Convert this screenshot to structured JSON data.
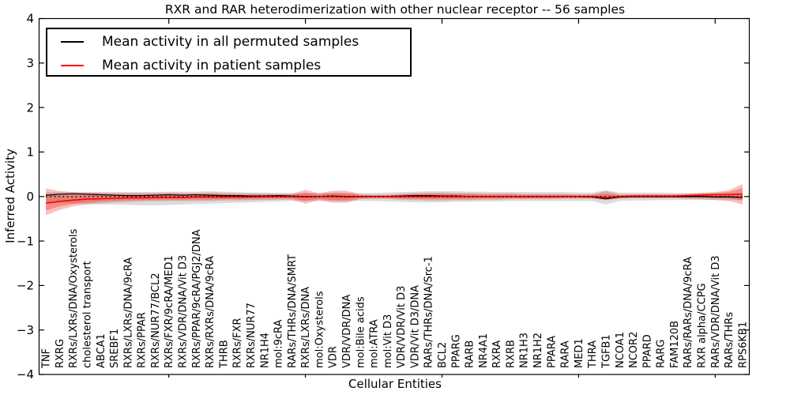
{
  "figure": {
    "title": "RXR and RAR heterodimerization with other nuclear receptor -- 56 samples",
    "xlabel": "Cellular Entities",
    "ylabel": "Inferred Activity",
    "legend": [
      {
        "label": "Mean activity in all permuted samples",
        "color": "#000000"
      },
      {
        "label": "Mean activity in patient samples",
        "color": "#ff0000"
      }
    ]
  },
  "chart_data": {
    "type": "line",
    "title": "RXR and RAR heterodimerization with other nuclear receptor -- 56 samples",
    "xlabel": "Cellular Entities",
    "ylabel": "Inferred Activity",
    "ylim": [
      -4,
      4
    ],
    "yticks": [
      4,
      3,
      2,
      1,
      0,
      -1,
      -2,
      -3,
      -4
    ],
    "x_major_tick_indices": [
      9,
      19,
      29,
      39,
      49
    ],
    "grid": false,
    "legend_position": "upper left",
    "categories": [
      "TNF",
      "RXRG",
      "RXRs/LXRs/DNA/Oxysterols",
      "cholesterol transport",
      "ABCA1",
      "SREBF1",
      "RXRs/LXRs/DNA/9cRA",
      "RXRs/PPAR",
      "RXRs/NUR77/BCL2",
      "RXRs/FXR/9cRA/MED1",
      "RXRs/VDR/DNA/Vit D3",
      "RXRs/PPAR/9cRA/PGJ2/DNA",
      "RXRs/RXRs/DNA/9cRA",
      "THRB",
      "RXRs/FXR",
      "RXRs/NUR77",
      "NR1H4",
      "mol:9cRA",
      "RARs/THRs/DNA/SMRT",
      "RXRs/LXRs/DNA",
      "mol:Oxysterols",
      "VDR",
      "VDR/VDR/DNA",
      "mol:Bile acids",
      "mol:ATRA",
      "mol:Vit D3",
      "VDR/VDR/Vit D3",
      "VDR/Vit D3/DNA",
      "RARs/THRs/DNA/Src-1",
      "BCL2",
      "PPARG",
      "RARB",
      "NR4A1",
      "RXRA",
      "RXRB",
      "NR1H3",
      "NR1H2",
      "PPARA",
      "RARA",
      "MED1",
      "THRA",
      "TGFB1",
      "NCOA1",
      "NCOR2",
      "PPARD",
      "RARG",
      "FAM120B",
      "RARs/RARs/DNA/9cRA",
      "RXR alpha/CCPG",
      "RARs/VDR/DNA/Vit D3",
      "RARs/THRs",
      "RPS6KB1"
    ],
    "series": [
      {
        "name": "Mean activity in all permuted samples",
        "color": "#000000",
        "style": "solid",
        "values": [
          0.03,
          0.05,
          0.06,
          0.05,
          0.04,
          0.03,
          0.02,
          0.02,
          0.03,
          0.04,
          0.03,
          0.04,
          0.03,
          0.02,
          0.02,
          0.01,
          0.01,
          0.02,
          0.01,
          0.0,
          0.0,
          0.01,
          0.0,
          0.0,
          0.0,
          0.0,
          0.01,
          0.02,
          0.02,
          0.01,
          0.01,
          0.0,
          0.0,
          0.0,
          0.0,
          0.0,
          0.0,
          0.0,
          0.0,
          0.0,
          -0.01,
          -0.05,
          -0.01,
          0.0,
          0.0,
          0.0,
          0.0,
          0.0,
          0.0,
          -0.01,
          -0.01,
          -0.02
        ]
      },
      {
        "name": "Mean activity in patient samples",
        "color": "#ff0000",
        "style": "solid",
        "values": [
          -0.15,
          -0.11,
          -0.08,
          -0.06,
          -0.05,
          -0.04,
          -0.03,
          -0.03,
          -0.02,
          -0.02,
          -0.02,
          -0.01,
          -0.01,
          -0.01,
          -0.01,
          -0.01,
          0.0,
          0.0,
          0.0,
          -0.01,
          0.0,
          0.0,
          -0.01,
          0.0,
          0.0,
          0.0,
          0.0,
          0.0,
          0.0,
          0.0,
          0.0,
          0.0,
          0.0,
          0.0,
          0.0,
          0.0,
          0.0,
          0.0,
          0.0,
          0.0,
          0.0,
          -0.02,
          0.0,
          0.01,
          0.01,
          0.01,
          0.01,
          0.02,
          0.03,
          0.04,
          0.04,
          0.05
        ]
      }
    ],
    "bands": [
      {
        "name": "permuted-samples-range",
        "color": "rgba(128,128,128,0.28)",
        "upper": [
          0.1,
          0.1,
          0.1,
          0.1,
          0.1,
          0.1,
          0.1,
          0.1,
          0.1,
          0.11,
          0.11,
          0.11,
          0.12,
          0.11,
          0.1,
          0.09,
          0.09,
          0.08,
          0.08,
          0.08,
          0.08,
          0.08,
          0.08,
          0.08,
          0.08,
          0.09,
          0.1,
          0.11,
          0.12,
          0.12,
          0.12,
          0.11,
          0.11,
          0.1,
          0.1,
          0.1,
          0.1,
          0.1,
          0.1,
          0.09,
          0.09,
          0.14,
          0.09,
          0.09,
          0.09,
          0.09,
          0.08,
          0.08,
          0.08,
          0.08,
          0.08,
          0.08
        ],
        "lower": [
          -0.12,
          -0.14,
          -0.16,
          -0.17,
          -0.18,
          -0.18,
          -0.19,
          -0.2,
          -0.2,
          -0.19,
          -0.18,
          -0.17,
          -0.16,
          -0.15,
          -0.14,
          -0.13,
          -0.12,
          -0.11,
          -0.1,
          -0.1,
          -0.1,
          -0.1,
          -0.1,
          -0.1,
          -0.1,
          -0.11,
          -0.12,
          -0.13,
          -0.13,
          -0.13,
          -0.12,
          -0.12,
          -0.11,
          -0.11,
          -0.1,
          -0.1,
          -0.1,
          -0.1,
          -0.1,
          -0.1,
          -0.1,
          -0.18,
          -0.1,
          -0.09,
          -0.09,
          -0.08,
          -0.08,
          -0.08,
          -0.08,
          -0.08,
          -0.08,
          -0.08
        ]
      },
      {
        "name": "patient-samples-range",
        "color": "rgba(235,45,35,0.30)",
        "inner_color": "rgba(235,45,35,0.35)",
        "inner_fraction": 0.6,
        "upper": [
          0.18,
          0.12,
          0.1,
          0.09,
          0.09,
          0.08,
          0.08,
          0.08,
          0.08,
          0.09,
          0.08,
          0.08,
          0.09,
          0.08,
          0.07,
          0.07,
          0.06,
          0.06,
          0.06,
          0.15,
          0.07,
          0.13,
          0.13,
          0.05,
          0.04,
          0.04,
          0.06,
          0.08,
          0.09,
          0.09,
          0.08,
          0.08,
          0.07,
          0.07,
          0.07,
          0.06,
          0.06,
          0.06,
          0.06,
          0.05,
          0.05,
          0.12,
          0.05,
          0.05,
          0.05,
          0.05,
          0.05,
          0.06,
          0.08,
          0.1,
          0.14,
          0.28
        ],
        "lower": [
          -0.42,
          -0.3,
          -0.22,
          -0.18,
          -0.15,
          -0.13,
          -0.12,
          -0.11,
          -0.11,
          -0.1,
          -0.1,
          -0.1,
          -0.1,
          -0.09,
          -0.09,
          -0.08,
          -0.08,
          -0.07,
          -0.07,
          -0.16,
          -0.08,
          -0.14,
          -0.14,
          -0.06,
          -0.05,
          -0.05,
          -0.07,
          -0.08,
          -0.09,
          -0.09,
          -0.08,
          -0.08,
          -0.07,
          -0.07,
          -0.06,
          -0.06,
          -0.06,
          -0.06,
          -0.05,
          -0.05,
          -0.05,
          -0.08,
          -0.05,
          -0.04,
          -0.04,
          -0.04,
          -0.04,
          -0.05,
          -0.06,
          -0.08,
          -0.1,
          -0.18
        ]
      }
    ],
    "zero_line": {
      "y": 0,
      "style": "dotted",
      "color": "#000000"
    }
  }
}
